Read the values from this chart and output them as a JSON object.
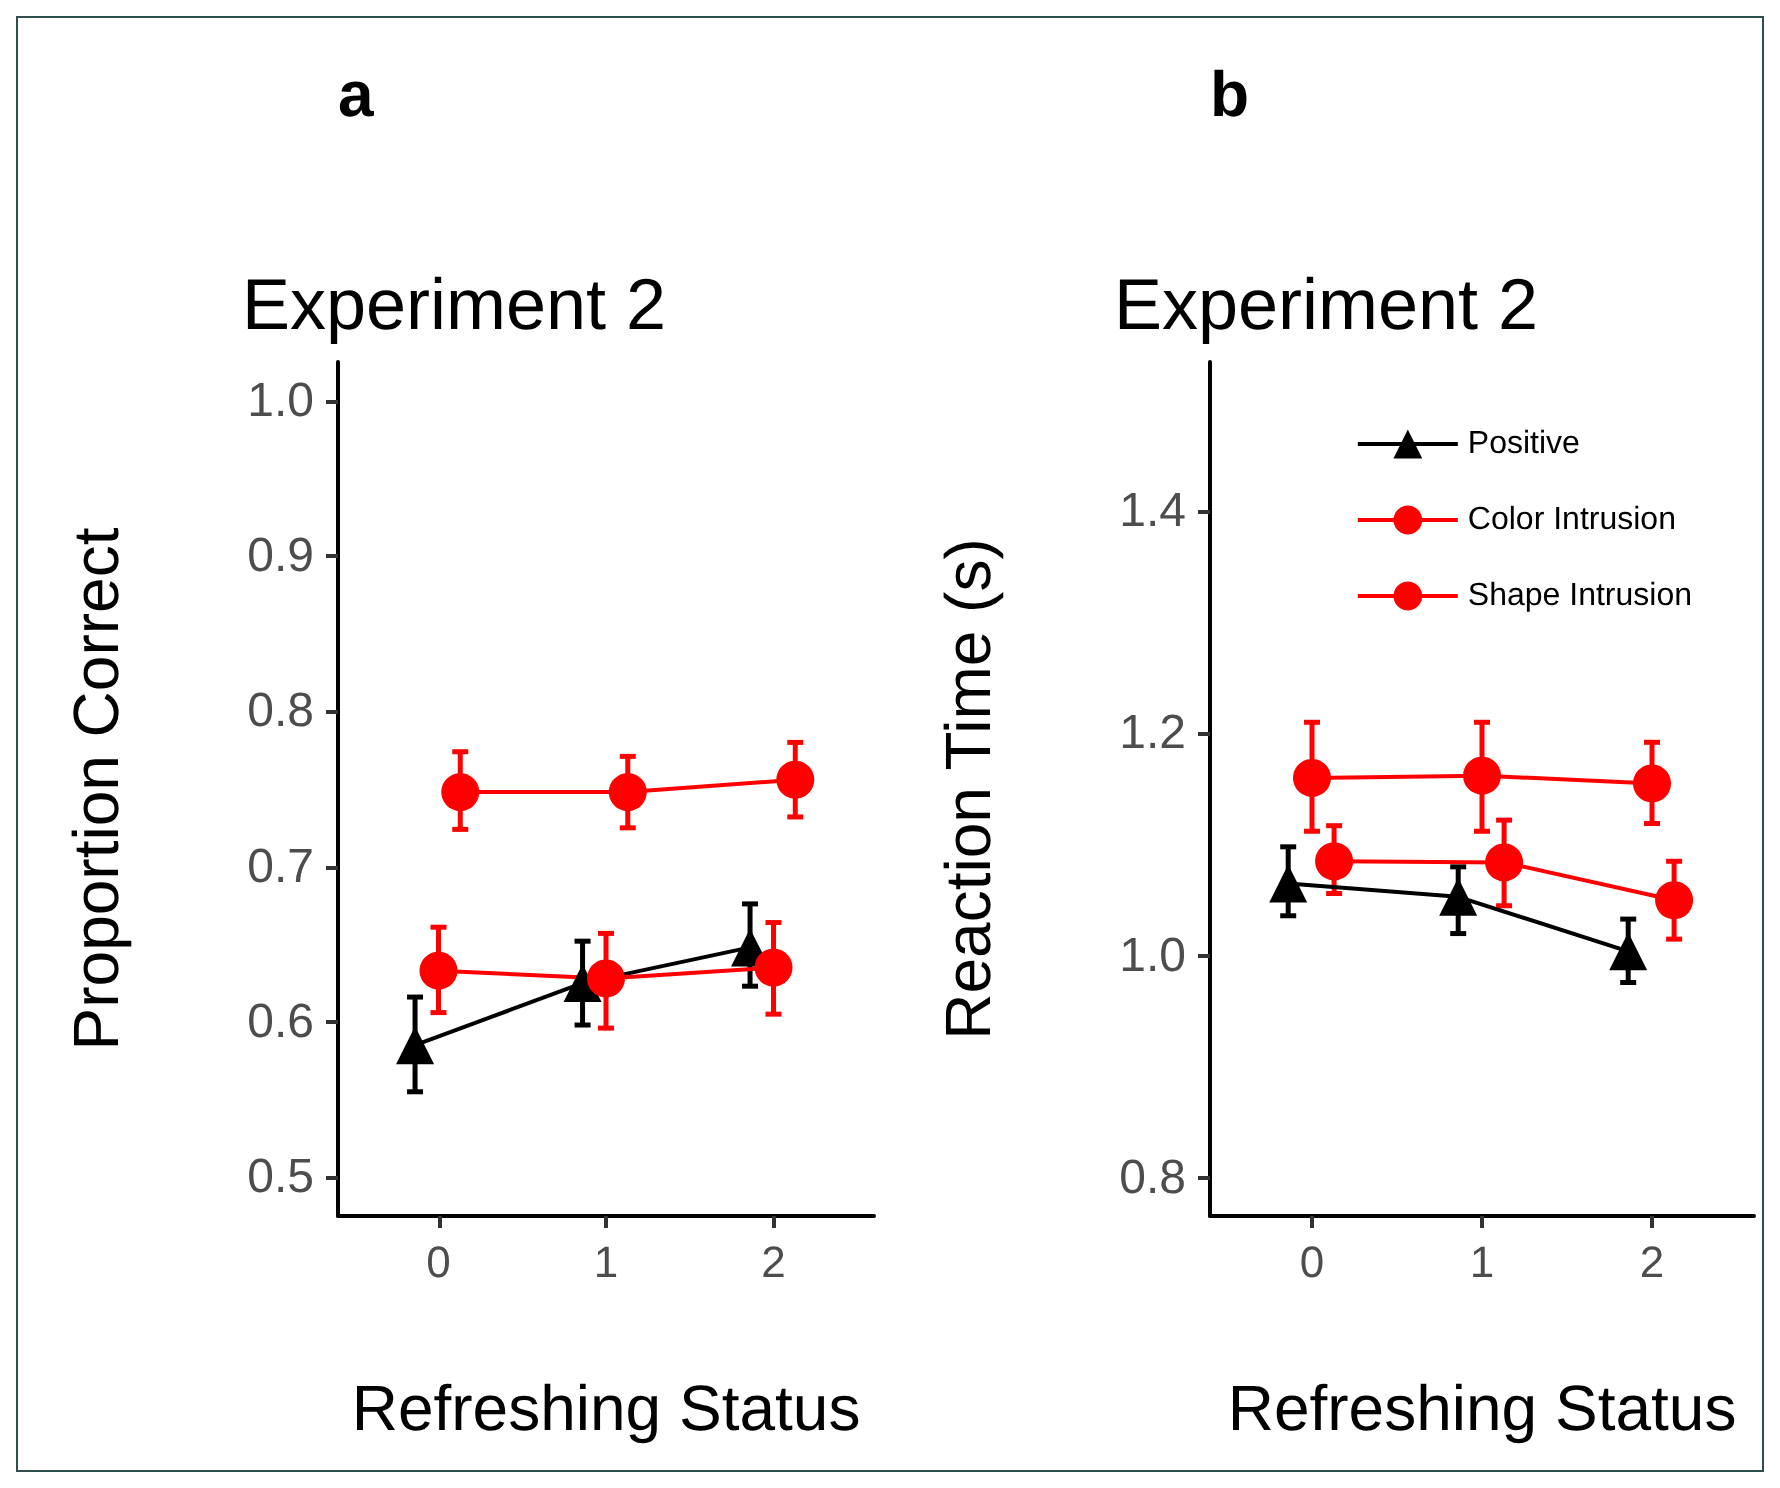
{
  "chart_data": [
    {
      "type": "line",
      "title": "Experiment 2",
      "annotations": [
        "a"
      ],
      "xlabel": "Refreshing Status",
      "ylabel": "Proportion Correct",
      "xlim": [
        -0.6,
        2.6
      ],
      "xticks": [
        0,
        1,
        2
      ],
      "ylim": [
        0.475,
        1.025
      ],
      "yticks": [
        0.5,
        0.6,
        0.7,
        0.8,
        0.9,
        {
          "value": 1,
          "label": "1.0"
        }
      ],
      "grid": false,
      "legend": false,
      "series": [
        {
          "color": "#000000",
          "marker": "triangle",
          "x": [
            -0.14,
            0.86,
            1.86
          ],
          "values": [
            0.585,
            0.625,
            0.648
          ],
          "errors": [
            [
              0.555,
              0.616
            ],
            [
              0.598,
              0.652
            ],
            [
              0.623,
              0.676
            ]
          ]
        },
        {
          "color": "#ff0000",
          "marker": "circle",
          "x": [
            0,
            1,
            2
          ],
          "values": [
            0.633,
            0.628,
            0.635
          ],
          "errors": [
            [
              0.606,
              0.661
            ],
            [
              0.596,
              0.657
            ],
            [
              0.605,
              0.664
            ]
          ]
        },
        {
          "color": "#ff0000",
          "marker": "circle",
          "x": [
            0.13,
            1.13,
            2.13
          ],
          "values": [
            0.748,
            0.748,
            0.756
          ],
          "errors": [
            [
              0.724,
              0.774
            ],
            [
              0.725,
              0.771
            ],
            [
              0.732,
              0.78
            ]
          ]
        }
      ]
    },
    {
      "type": "line",
      "title": "Experiment 2",
      "annotations": [
        "b"
      ],
      "xlabel": "Refreshing Status",
      "ylabel": "Reaction Time (s)",
      "xlim": [
        -0.6,
        2.6
      ],
      "xticks": [
        0,
        1,
        2
      ],
      "ylim": [
        0.766,
        1.534
      ],
      "yticks": [
        0.8,
        {
          "value": 1,
          "label": "1.0"
        },
        1.2,
        1.4
      ],
      "grid": false,
      "legend": "top right",
      "series": [
        {
          "name": "Positive",
          "color": "#000000",
          "marker": "triangle",
          "x": [
            -0.14,
            0.86,
            1.86
          ],
          "values": [
            1.065,
            1.053,
            1.004
          ],
          "errors": [
            [
              1.036,
              1.098
            ],
            [
              1.02,
              1.08
            ],
            [
              0.976,
              1.033
            ]
          ]
        },
        {
          "name": "Color Intrusion",
          "color": "#ff0000",
          "marker": "circle",
          "x": [
            0,
            1,
            2
          ],
          "values": [
            1.16,
            1.162,
            1.155
          ],
          "errors": [
            [
              1.112,
              1.21
            ],
            [
              1.112,
              1.21
            ],
            [
              1.119,
              1.192
            ]
          ]
        },
        {
          "name": "Shape Intrusion",
          "color": "#ff0000",
          "marker": "circle",
          "x": [
            0.13,
            1.13,
            2.13
          ],
          "values": [
            1.085,
            1.084,
            1.05
          ],
          "errors": [
            [
              1.056,
              1.117
            ],
            [
              1.045,
              1.122
            ],
            [
              1.015,
              1.085
            ]
          ]
        }
      ]
    }
  ]
}
